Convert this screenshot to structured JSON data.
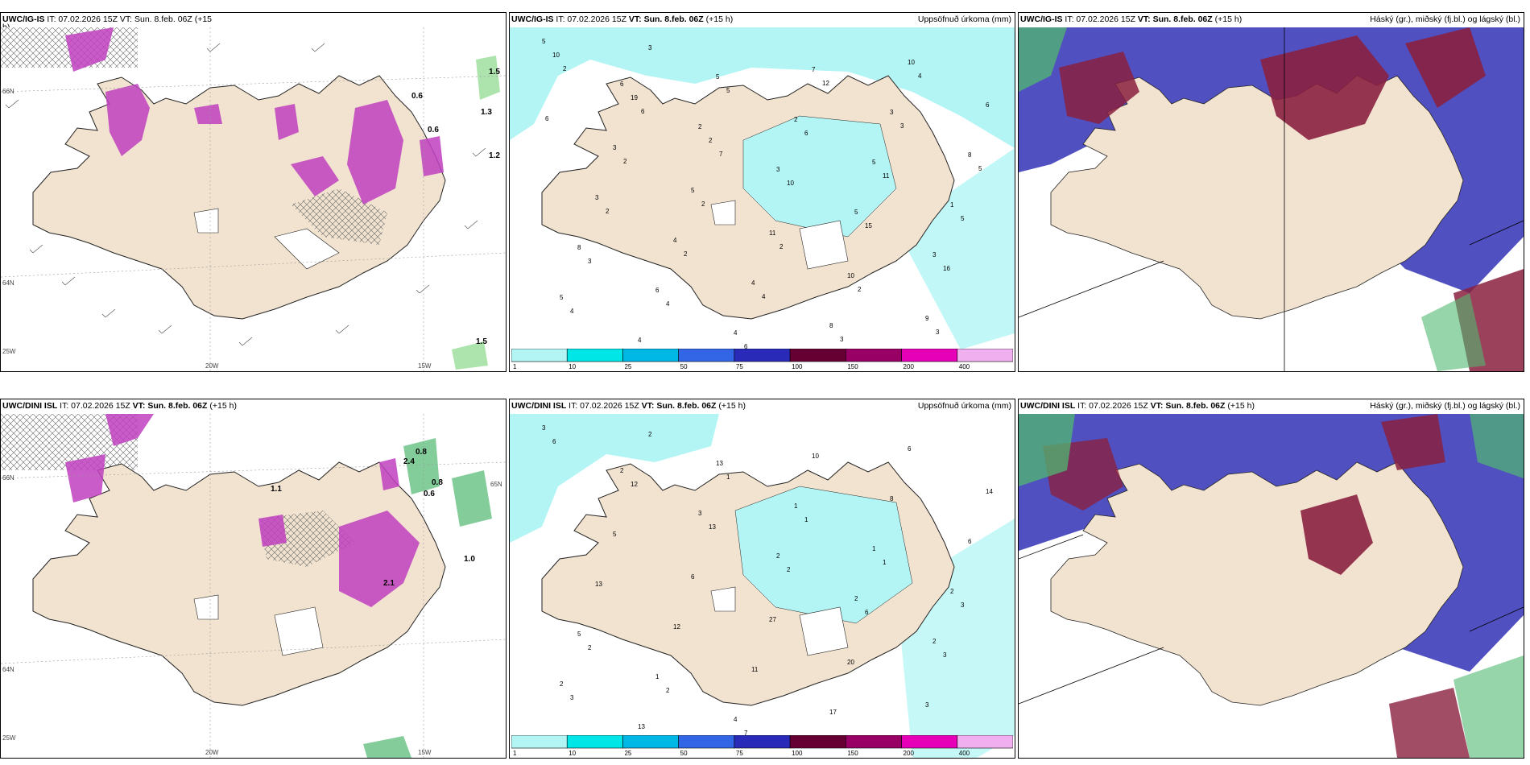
{
  "row_top": {
    "panel_1": {
      "model": "UWC/IG-IS",
      "header_rest": "IT: 07.02.2026 15Z VT: Sun. 8.feb. 06Z (+15",
      "header_wrap": "h)"
    },
    "panel_2": {
      "model": "UWC/IG-IS",
      "it": "IT: 07.02.2026 15Z",
      "vt": "VT: Sun. 8.feb. 06Z",
      "lead": "(+15 h)",
      "right_title": "Uppsöfnuð úrkoma (mm)"
    },
    "panel_3": {
      "model": "UWC/IG-IS",
      "it": "IT: 07.02.2026 15Z",
      "vt": "VT: Sun. 8.feb. 06Z",
      "lead": "(+15 h)",
      "right_title": "Háský (gr.), miðský (fj.bl.) og lágský (bl.)"
    }
  },
  "row_bottom": {
    "panel_1": {
      "model": "UWC/DINI ISL",
      "it": "IT: 07.02.2026 15Z",
      "vt": "VT: Sun. 8.feb. 06Z",
      "lead": "(+15 h)"
    },
    "panel_2": {
      "model": "UWC/DINI ISL",
      "it": "IT: 07.02.2026 15Z",
      "vt": "VT: Sun. 8.feb. 06Z",
      "lead": "(+15 h)",
      "right_title": "Uppsöfnuð úrkoma (mm)"
    },
    "panel_3": {
      "model": "UWC/DINI ISL",
      "it": "IT: 07.02.2026 15Z",
      "vt": "VT: Sun. 8.feb. 06Z",
      "lead": "(+15 h)",
      "right_title": "Háský (gr.), miðský (fj.bl.) og lágský (bl.)"
    }
  },
  "grid_labels": {
    "lon_20w": "20W",
    "lon_15w": "15W",
    "lat_65n": "65N",
    "lat_64n": "64N",
    "lat_66n": "66N",
    "lon_25w": "25W"
  },
  "colorbar": {
    "ticks": [
      "1",
      "10",
      "25",
      "50",
      "75",
      "100",
      "150",
      "200",
      "400"
    ],
    "colors": [
      "#b3f5f5",
      "#00e5e5",
      "#00b8e6",
      "#3366e6",
      "#2a2ab8",
      "#660033",
      "#990066",
      "#e600b8",
      "#f0b0f0"
    ]
  },
  "precip_labels_top": [
    "5",
    "6",
    "2",
    "3",
    "5",
    "3",
    "5",
    "4",
    "5",
    "2",
    "5",
    "1",
    "8",
    "6",
    "4",
    "7",
    "3",
    "8",
    "3",
    "4",
    "4",
    "8",
    "10",
    "6",
    "3",
    "5",
    "11",
    "10",
    "9",
    "10",
    "19",
    "2",
    "10",
    "15",
    "16",
    "4",
    "3",
    "5",
    "6",
    "11",
    "5",
    "3",
    "4",
    "6",
    "12",
    "3",
    "5",
    "2",
    "2",
    "4",
    "3",
    "4",
    "6",
    "2",
    "2",
    "2",
    "2",
    "3",
    "2",
    "6",
    "7"
  ],
  "precip_labels_bottom": [
    "3",
    "2",
    "3",
    "2",
    "2",
    "2",
    "2",
    "13",
    "13",
    "1",
    "1",
    "2",
    "5",
    "1",
    "4",
    "10",
    "8",
    "6",
    "13",
    "12",
    "11",
    "17",
    "6",
    "14",
    "5",
    "6",
    "27",
    "20",
    "3",
    "6",
    "12",
    "13",
    "2",
    "6",
    "3",
    "3",
    "2",
    "1",
    "1",
    "1",
    "3",
    "2",
    "2",
    "7"
  ],
  "wind_labels_top": [
    "1.5",
    "1.3",
    "1.2",
    "0.6",
    "0.6",
    "1.5"
  ],
  "wind_labels_bottom": [
    "0.8",
    "2.4",
    "0.8",
    "0.6",
    "1.0",
    "1.1",
    "2.1"
  ],
  "colors": {
    "land": "#f2e3d0",
    "coast": "#222222",
    "precip_light": "#b3f5f5",
    "precip_purple": "#c040c0",
    "cloud_blue": "#5050c0",
    "cloud_red": "#8a2040",
    "cloud_green": "#50b870"
  }
}
